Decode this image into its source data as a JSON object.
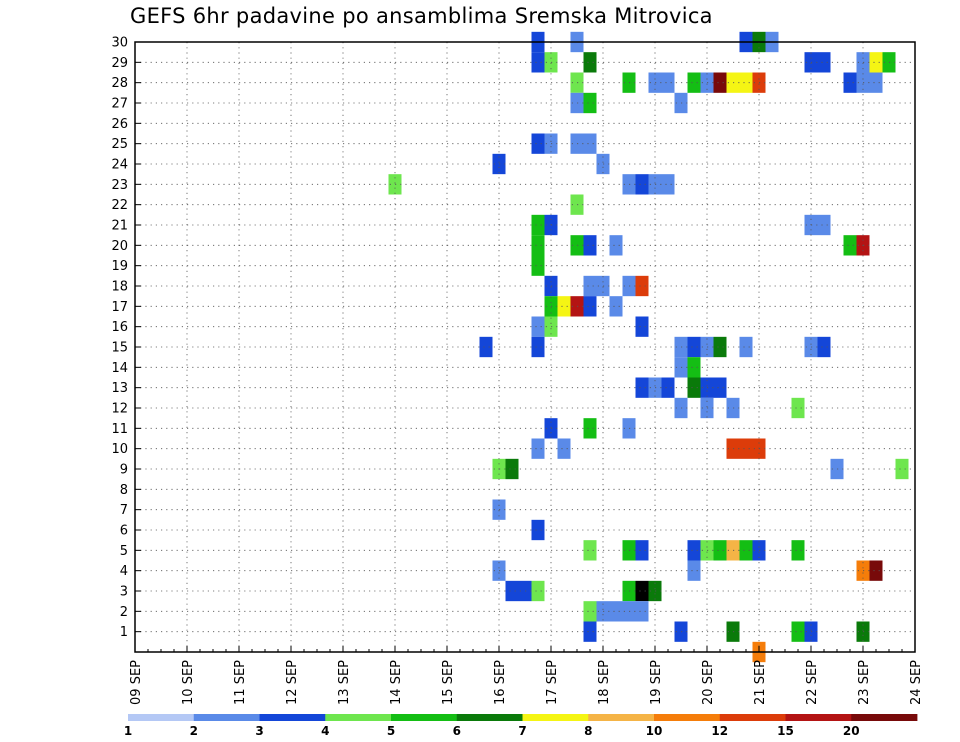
{
  "chart_data": {
    "type": "heatmap",
    "title": "GEFS 6hr padavine po ansamblima Sremska Mitrovica",
    "x_tick_labels": [
      "09 SEP",
      "10 SEP",
      "11 SEP",
      "12 SEP",
      "13 SEP",
      "14 SEP",
      "15 SEP",
      "16 SEP",
      "17 SEP",
      "18 SEP",
      "19 SEP",
      "20 SEP",
      "21 SEP",
      "22 SEP",
      "23 SEP",
      "24 SEP"
    ],
    "x_range_days": [
      0,
      15
    ],
    "y_tick_labels": [
      "1",
      "2",
      "3",
      "4",
      "5",
      "6",
      "7",
      "8",
      "9",
      "10",
      "11",
      "12",
      "13",
      "14",
      "15",
      "16",
      "17",
      "18",
      "19",
      "20",
      "21",
      "22",
      "23",
      "24",
      "25",
      "26",
      "27",
      "28",
      "29",
      "30"
    ],
    "y_range": [
      0,
      30
    ],
    "grid": true,
    "legend": {
      "placement": "bottom",
      "labels": [
        "1",
        "2",
        "3",
        "4",
        "5",
        "6",
        "7",
        "8",
        "10",
        "12",
        "15",
        "20"
      ],
      "colors": [
        "#b4c8f5",
        "#5a8ae8",
        "#1446d8",
        "#6ee64e",
        "#14be14",
        "#0a7a0a",
        "#f5f514",
        "#f5b446",
        "#f57d0a",
        "#dc3c0a",
        "#b41414",
        "#780a0a"
      ]
    },
    "cell_width_days": 0.25,
    "cells": [
      [
        7.75,
        30,
        2
      ],
      [
        8.5,
        30,
        1
      ],
      [
        11.75,
        30,
        2
      ],
      [
        12.0,
        30,
        5
      ],
      [
        12.25,
        30,
        1
      ],
      [
        7.75,
        29,
        2
      ],
      [
        8.0,
        29,
        3
      ],
      [
        8.75,
        29,
        5
      ],
      [
        13.0,
        29,
        2
      ],
      [
        13.25,
        29,
        2
      ],
      [
        14.0,
        29,
        1
      ],
      [
        14.25,
        29,
        6
      ],
      [
        14.5,
        29,
        4
      ],
      [
        8.5,
        28,
        3
      ],
      [
        9.5,
        28,
        4
      ],
      [
        10.0,
        28,
        1
      ],
      [
        10.25,
        28,
        1
      ],
      [
        10.75,
        28,
        4
      ],
      [
        11.0,
        28,
        1
      ],
      [
        11.25,
        28,
        11
      ],
      [
        11.5,
        28,
        6
      ],
      [
        11.75,
        28,
        6
      ],
      [
        12.0,
        28,
        9
      ],
      [
        13.75,
        28,
        2
      ],
      [
        14.0,
        28,
        1
      ],
      [
        14.25,
        28,
        1
      ],
      [
        8.5,
        27,
        1
      ],
      [
        8.75,
        27,
        4
      ],
      [
        10.5,
        27,
        1
      ],
      [
        7.75,
        25,
        2
      ],
      [
        8.0,
        25,
        1
      ],
      [
        8.5,
        25,
        1
      ],
      [
        8.75,
        25,
        1
      ],
      [
        7.0,
        24,
        2
      ],
      [
        9.0,
        24,
        1
      ],
      [
        5.0,
        23,
        3
      ],
      [
        9.5,
        23,
        1
      ],
      [
        9.75,
        23,
        2
      ],
      [
        10.0,
        23,
        1
      ],
      [
        10.25,
        23,
        1
      ],
      [
        8.5,
        22,
        3
      ],
      [
        7.75,
        21,
        4
      ],
      [
        8.0,
        21,
        2
      ],
      [
        13.0,
        21,
        1
      ],
      [
        13.25,
        21,
        1
      ],
      [
        7.75,
        20,
        4
      ],
      [
        8.5,
        20,
        4
      ],
      [
        8.75,
        20,
        2
      ],
      [
        9.25,
        20,
        1
      ],
      [
        13.75,
        20,
        4
      ],
      [
        14.0,
        20,
        10
      ],
      [
        7.75,
        19,
        4
      ],
      [
        8.0,
        18,
        2
      ],
      [
        8.75,
        18,
        1
      ],
      [
        9.0,
        18,
        1
      ],
      [
        9.5,
        18,
        1
      ],
      [
        9.75,
        18,
        9
      ],
      [
        8.0,
        17,
        4
      ],
      [
        8.25,
        17,
        6
      ],
      [
        8.5,
        17,
        10
      ],
      [
        8.75,
        17,
        2
      ],
      [
        9.25,
        17,
        1
      ],
      [
        7.75,
        16,
        1
      ],
      [
        8.0,
        16,
        3
      ],
      [
        9.75,
        16,
        2
      ],
      [
        6.75,
        15,
        2
      ],
      [
        7.75,
        15,
        2
      ],
      [
        10.5,
        15,
        1
      ],
      [
        10.75,
        15,
        2
      ],
      [
        11.0,
        15,
        1
      ],
      [
        11.25,
        15,
        5
      ],
      [
        11.75,
        15,
        1
      ],
      [
        13.0,
        15,
        1
      ],
      [
        13.25,
        15,
        2
      ],
      [
        10.5,
        14,
        1
      ],
      [
        10.75,
        14,
        4
      ],
      [
        9.75,
        13,
        2
      ],
      [
        10.0,
        13,
        1
      ],
      [
        10.25,
        13,
        2
      ],
      [
        10.75,
        13,
        5
      ],
      [
        11.0,
        13,
        2
      ],
      [
        11.25,
        13,
        2
      ],
      [
        10.5,
        12,
        1
      ],
      [
        11.0,
        12,
        1
      ],
      [
        11.5,
        12,
        1
      ],
      [
        12.75,
        12,
        3
      ],
      [
        8.0,
        11,
        2
      ],
      [
        8.75,
        11,
        4
      ],
      [
        9.5,
        11,
        1
      ],
      [
        7.75,
        10,
        1
      ],
      [
        8.25,
        10,
        1
      ],
      [
        11.5,
        10,
        9
      ],
      [
        11.75,
        10,
        9
      ],
      [
        12.0,
        10,
        9
      ],
      [
        7.0,
        9,
        3
      ],
      [
        7.25,
        9,
        5
      ],
      [
        13.5,
        9,
        1
      ],
      [
        14.75,
        9,
        3
      ],
      [
        7.0,
        7,
        1
      ],
      [
        7.75,
        6,
        2
      ],
      [
        8.75,
        5,
        3
      ],
      [
        9.5,
        5,
        4
      ],
      [
        9.75,
        5,
        2
      ],
      [
        10.75,
        5,
        2
      ],
      [
        11.0,
        5,
        3
      ],
      [
        11.25,
        5,
        4
      ],
      [
        11.5,
        5,
        7
      ],
      [
        11.75,
        5,
        4
      ],
      [
        12.0,
        5,
        2
      ],
      [
        12.75,
        5,
        4
      ],
      [
        7.0,
        4,
        1
      ],
      [
        10.75,
        4,
        1
      ],
      [
        14.0,
        4,
        8
      ],
      [
        14.25,
        4,
        11
      ],
      [
        7.25,
        3,
        2
      ],
      [
        7.5,
        3,
        2
      ],
      [
        7.75,
        3,
        3
      ],
      [
        9.5,
        3,
        4
      ],
      [
        9.75,
        3,
        12
      ],
      [
        10.0,
        3,
        5
      ],
      [
        8.75,
        2,
        3
      ],
      [
        9.0,
        2,
        1
      ],
      [
        9.25,
        2,
        1
      ],
      [
        9.5,
        2,
        1
      ],
      [
        9.75,
        2,
        1
      ],
      [
        8.75,
        1,
        2
      ],
      [
        10.5,
        1,
        2
      ],
      [
        11.5,
        1,
        5
      ],
      [
        12.75,
        1,
        4
      ],
      [
        13.0,
        1,
        2
      ],
      [
        14.0,
        1,
        5
      ],
      [
        12.0,
        0,
        8
      ]
    ]
  }
}
